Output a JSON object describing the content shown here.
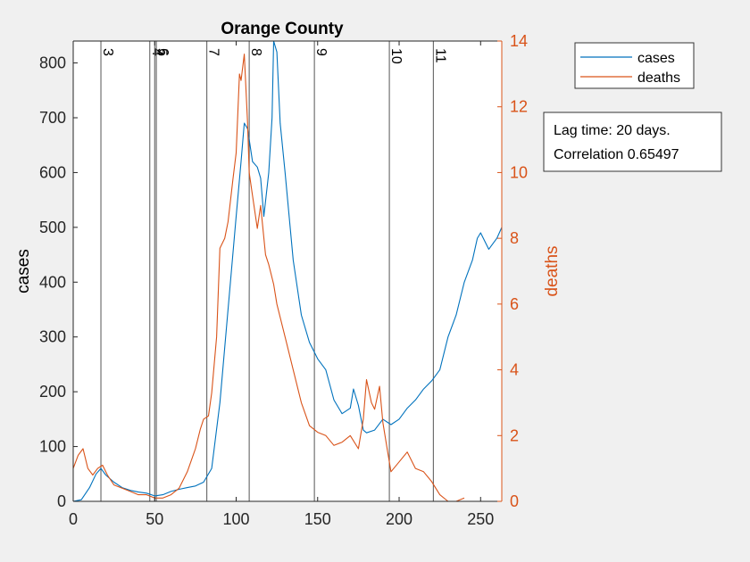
{
  "chart_data": {
    "type": "line",
    "title": "Orange County",
    "xlabel": "",
    "ylabel": "cases",
    "y2label": "deaths",
    "xlim": [
      0,
      263
    ],
    "ylim": [
      0,
      840
    ],
    "y2lim": [
      0,
      14
    ],
    "xticks": [
      0,
      50,
      100,
      150,
      200,
      250
    ],
    "yticks": [
      0,
      100,
      200,
      300,
      400,
      500,
      600,
      700,
      800
    ],
    "y2ticks": [
      0,
      2,
      4,
      6,
      8,
      10,
      12,
      14
    ],
    "grid": false,
    "legend_position": "top-right",
    "annotation": [
      "Lag time: 20 days.",
      "Correlation 0.65497"
    ],
    "colors": {
      "cases": "#0072bd",
      "deaths": "#d95319",
      "axis2": "#d95319"
    },
    "vlines": [
      {
        "x": 17,
        "label": "3"
      },
      {
        "x": 47,
        "label": "4"
      },
      {
        "x": 50,
        "label": "5"
      },
      {
        "x": 51,
        "label": "6"
      },
      {
        "x": 82,
        "label": "7"
      },
      {
        "x": 108,
        "label": "8"
      },
      {
        "x": 148,
        "label": "9"
      },
      {
        "x": 194,
        "label": "10"
      },
      {
        "x": 221,
        "label": "11"
      }
    ],
    "series": [
      {
        "name": "cases",
        "axis": "left",
        "x": [
          0,
          5,
          10,
          14,
          17,
          20,
          25,
          30,
          35,
          40,
          45,
          50,
          55,
          60,
          65,
          70,
          75,
          80,
          85,
          90,
          95,
          100,
          103,
          105,
          107,
          110,
          113,
          115,
          117,
          120,
          122,
          123,
          125,
          127,
          130,
          135,
          140,
          145,
          150,
          155,
          160,
          165,
          170,
          172,
          175,
          178,
          180,
          185,
          190,
          195,
          200,
          205,
          210,
          215,
          220,
          225,
          230,
          235,
          240,
          245,
          248,
          250,
          255,
          260,
          263
        ],
        "values": [
          0,
          3,
          25,
          50,
          60,
          48,
          35,
          25,
          20,
          17,
          15,
          10,
          12,
          18,
          22,
          25,
          28,
          35,
          60,
          180,
          350,
          520,
          620,
          690,
          680,
          620,
          610,
          590,
          520,
          600,
          700,
          840,
          820,
          690,
          600,
          440,
          340,
          290,
          260,
          240,
          185,
          160,
          170,
          205,
          175,
          130,
          125,
          130,
          150,
          140,
          150,
          170,
          185,
          205,
          220,
          240,
          300,
          340,
          400,
          440,
          480,
          490,
          460,
          480,
          500
        ]
      },
      {
        "name": "deaths",
        "axis": "right",
        "x": [
          0,
          3,
          6,
          9,
          12,
          15,
          18,
          21,
          25,
          30,
          35,
          40,
          45,
          50,
          55,
          60,
          65,
          70,
          75,
          78,
          80,
          83,
          85,
          88,
          90,
          93,
          95,
          98,
          100,
          102,
          103,
          105,
          107,
          108,
          110,
          113,
          115,
          118,
          120,
          123,
          125,
          130,
          135,
          140,
          145,
          150,
          155,
          160,
          165,
          170,
          175,
          178,
          180,
          183,
          185,
          188,
          190,
          193,
          195,
          200,
          205,
          210,
          215,
          220,
          225,
          230,
          235,
          240
        ],
        "values": [
          1.0,
          1.4,
          1.6,
          1.0,
          0.8,
          1.0,
          1.1,
          0.8,
          0.5,
          0.4,
          0.3,
          0.2,
          0.2,
          0.1,
          0.1,
          0.2,
          0.4,
          0.9,
          1.6,
          2.2,
          2.5,
          2.6,
          3.3,
          5.0,
          7.7,
          8.0,
          8.5,
          9.8,
          10.6,
          13.0,
          12.8,
          13.6,
          11.5,
          10.0,
          9.3,
          8.3,
          9.0,
          7.5,
          7.2,
          6.6,
          6.0,
          5.0,
          4.0,
          3.0,
          2.3,
          2.1,
          2.0,
          1.7,
          1.8,
          2.0,
          1.6,
          2.5,
          3.7,
          3.0,
          2.8,
          3.5,
          2.4,
          1.5,
          0.9,
          1.2,
          1.5,
          1.0,
          0.9,
          0.6,
          0.2,
          0.0,
          0.0,
          0.1
        ]
      }
    ]
  }
}
